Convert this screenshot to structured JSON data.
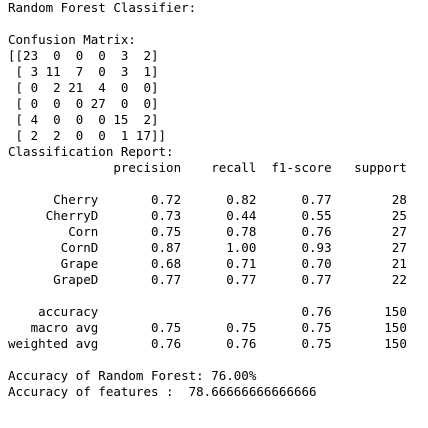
{
  "output_lines": [
    "Random Forest Classifier:",
    "",
    "Confusion Matrix:",
    "[[23  0  0  0  3  2]",
    " [ 3 11  7  0  3  1]",
    " [ 0  2 21  4  0  0]",
    " [ 0  0  0 27  0  0]",
    " [ 4  0  0  0 15  2]",
    " [ 2  2  0  0  1 17]]",
    "Classification Report:",
    "              precision    recall  f1-score   support",
    "",
    "      Cherry       0.72      0.82      0.77        28",
    "     CherryD       0.73      0.44      0.55        25",
    "        Corn       0.75      0.78      0.76        27",
    "       CornD       0.87      1.00      0.93        27",
    "       Grape       0.68      0.71      0.70        21",
    "      GrapeD       0.77      0.77      0.77        22",
    "",
    "    accuracy                           0.76       150",
    "   macro avg       0.75      0.75      0.75       150",
    "weighted avg       0.76      0.76      0.75       150",
    "",
    "Accuracy of Random Forest: 76.00%",
    "Accuracy of features :  78.66666666666666"
  ]
}
